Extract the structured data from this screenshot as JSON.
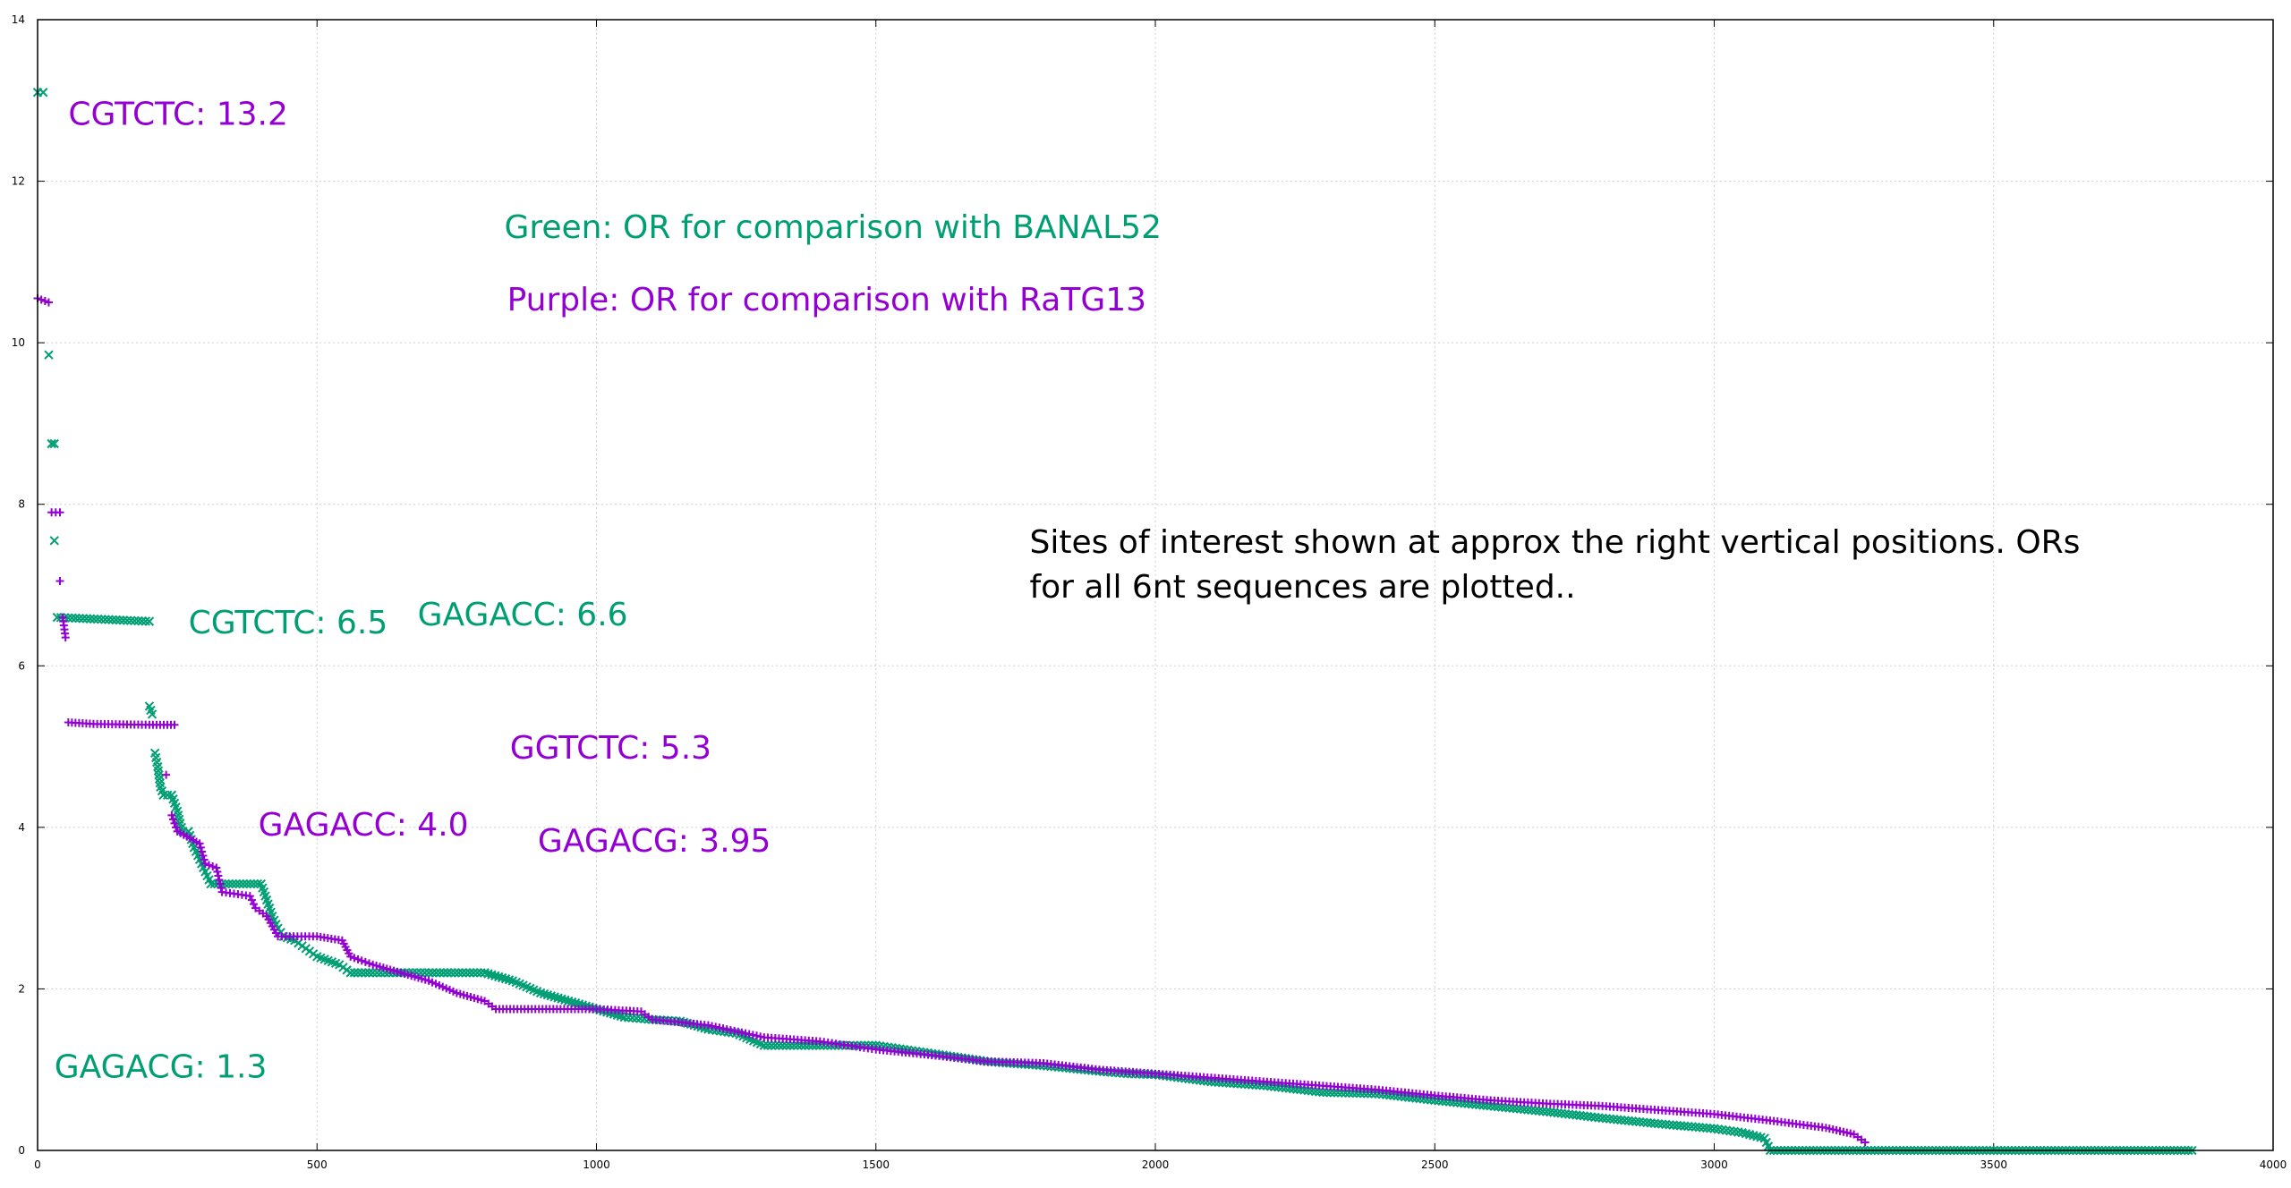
{
  "chart_data": {
    "type": "scatter",
    "title": "",
    "xlabel": "",
    "ylabel": "",
    "xlim": [
      0,
      4000
    ],
    "ylim": [
      0,
      14
    ],
    "x_ticks": [
      "0",
      "500",
      "1000",
      "1500",
      "2000",
      "2500",
      "3000",
      "3500",
      "4000"
    ],
    "y_ticks": [
      "0",
      "2",
      "4",
      "6",
      "8",
      "10",
      "12",
      "14"
    ],
    "grid": true,
    "colors": {
      "green": "#009e73",
      "purple": "#9400d3"
    },
    "series": [
      {
        "color": "#009e73",
        "marker": "x",
        "points": [
          [
            0,
            13.1
          ],
          [
            10,
            13.1
          ],
          [
            20,
            9.85
          ],
          [
            25,
            8.75
          ],
          [
            30,
            8.75
          ],
          [
            30,
            7.55
          ],
          [
            35,
            6.6
          ],
          [
            200,
            6.55
          ],
          [
            200,
            5.5
          ],
          [
            205,
            5.4
          ],
          [
            210,
            4.92
          ],
          [
            215,
            4.75
          ],
          [
            220,
            4.5
          ],
          [
            225,
            4.4
          ],
          [
            240,
            4.4
          ],
          [
            250,
            4.2
          ],
          [
            255,
            4.05
          ],
          [
            260,
            3.95
          ],
          [
            270,
            3.95
          ],
          [
            280,
            3.75
          ],
          [
            290,
            3.6
          ],
          [
            300,
            3.45
          ],
          [
            310,
            3.3
          ],
          [
            400,
            3.3
          ],
          [
            410,
            3.1
          ],
          [
            420,
            2.9
          ],
          [
            430,
            2.75
          ],
          [
            440,
            2.65
          ],
          [
            460,
            2.6
          ],
          [
            480,
            2.5
          ],
          [
            500,
            2.4
          ],
          [
            540,
            2.3
          ],
          [
            560,
            2.2
          ],
          [
            600,
            2.2
          ],
          [
            650,
            2.2
          ],
          [
            700,
            2.2
          ],
          [
            800,
            2.2
          ],
          [
            850,
            2.1
          ],
          [
            900,
            1.95
          ],
          [
            950,
            1.85
          ],
          [
            1000,
            1.75
          ],
          [
            1050,
            1.65
          ],
          [
            1100,
            1.62
          ],
          [
            1150,
            1.6
          ],
          [
            1200,
            1.5
          ],
          [
            1250,
            1.45
          ],
          [
            1300,
            1.3
          ],
          [
            1400,
            1.3
          ],
          [
            1500,
            1.3
          ],
          [
            1550,
            1.25
          ],
          [
            1600,
            1.2
          ],
          [
            1700,
            1.1
          ],
          [
            1800,
            1.05
          ],
          [
            1900,
            0.98
          ],
          [
            1950,
            0.95
          ],
          [
            2000,
            0.94
          ],
          [
            2100,
            0.85
          ],
          [
            2200,
            0.8
          ],
          [
            2300,
            0.72
          ],
          [
            2400,
            0.7
          ],
          [
            2500,
            0.62
          ],
          [
            2600,
            0.55
          ],
          [
            2700,
            0.48
          ],
          [
            2800,
            0.4
          ],
          [
            2900,
            0.33
          ],
          [
            3000,
            0.27
          ],
          [
            3050,
            0.22
          ],
          [
            3090,
            0.15
          ],
          [
            3100,
            0.0
          ],
          [
            3500,
            0.0
          ],
          [
            3855,
            0.0
          ]
        ]
      },
      {
        "color": "#9400d3",
        "marker": "+",
        "points": [
          [
            0,
            10.55
          ],
          [
            20,
            10.5
          ],
          [
            25,
            7.9
          ],
          [
            40,
            7.9
          ],
          [
            40,
            7.05
          ],
          [
            45,
            6.6
          ],
          [
            50,
            6.35
          ],
          [
            55,
            5.3
          ],
          [
            100,
            5.28
          ],
          [
            200,
            5.27
          ],
          [
            245,
            5.27
          ],
          [
            230,
            4.65
          ],
          [
            240,
            4.15
          ],
          [
            250,
            3.95
          ],
          [
            290,
            3.8
          ],
          [
            300,
            3.55
          ],
          [
            320,
            3.5
          ],
          [
            330,
            3.2
          ],
          [
            380,
            3.15
          ],
          [
            390,
            3.0
          ],
          [
            410,
            2.9
          ],
          [
            430,
            2.65
          ],
          [
            500,
            2.65
          ],
          [
            545,
            2.6
          ],
          [
            560,
            2.4
          ],
          [
            600,
            2.3
          ],
          [
            650,
            2.2
          ],
          [
            700,
            2.1
          ],
          [
            750,
            1.95
          ],
          [
            800,
            1.85
          ],
          [
            820,
            1.75
          ],
          [
            1000,
            1.75
          ],
          [
            1080,
            1.72
          ],
          [
            1100,
            1.62
          ],
          [
            1200,
            1.55
          ],
          [
            1300,
            1.4
          ],
          [
            1400,
            1.35
          ],
          [
            1450,
            1.3
          ],
          [
            1500,
            1.25
          ],
          [
            1600,
            1.18
          ],
          [
            1700,
            1.1
          ],
          [
            1800,
            1.08
          ],
          [
            1900,
            1.0
          ],
          [
            2000,
            0.95
          ],
          [
            2100,
            0.9
          ],
          [
            2200,
            0.85
          ],
          [
            2300,
            0.8
          ],
          [
            2400,
            0.75
          ],
          [
            2500,
            0.68
          ],
          [
            2600,
            0.62
          ],
          [
            2700,
            0.58
          ],
          [
            2800,
            0.55
          ],
          [
            2900,
            0.5
          ],
          [
            3000,
            0.45
          ],
          [
            3100,
            0.37
          ],
          [
            3200,
            0.28
          ],
          [
            3250,
            0.2
          ],
          [
            3270,
            0.1
          ]
        ]
      }
    ],
    "annotations": [
      {
        "text": "CGTCTC: 13.2",
        "x": 55,
        "y": 12.7,
        "color": "#9400d3"
      },
      {
        "text": "Green: OR for comparison with BANAL52",
        "x": 835,
        "y": 11.3,
        "color": "#009e73"
      },
      {
        "text": "Purple: OR for comparison with RaTG13",
        "x": 840,
        "y": 10.4,
        "color": "#9400d3"
      },
      {
        "text": "CGTCTC: 6.5",
        "x": 270,
        "y": 6.4,
        "color": "#009e73"
      },
      {
        "text": "GAGACC: 6.6",
        "x": 680,
        "y": 6.5,
        "color": "#009e73"
      },
      {
        "text": "GGTCTC: 5.3",
        "x": 845,
        "y": 4.85,
        "color": "#9400d3"
      },
      {
        "text": "GAGACC: 4.0",
        "x": 395,
        "y": 3.9,
        "color": "#9400d3"
      },
      {
        "text": "GAGACG: 3.95",
        "x": 895,
        "y": 3.7,
        "color": "#9400d3"
      },
      {
        "text": "GAGACG: 1.3",
        "x": 30,
        "y": 0.9,
        "color": "#009e73"
      }
    ],
    "note": [
      "Sites of interest shown at approx the right vertical positions. ORs",
      "for all 6nt sequences are plotted.."
    ],
    "note_position": {
      "x": 1775,
      "y": 7.4
    }
  }
}
